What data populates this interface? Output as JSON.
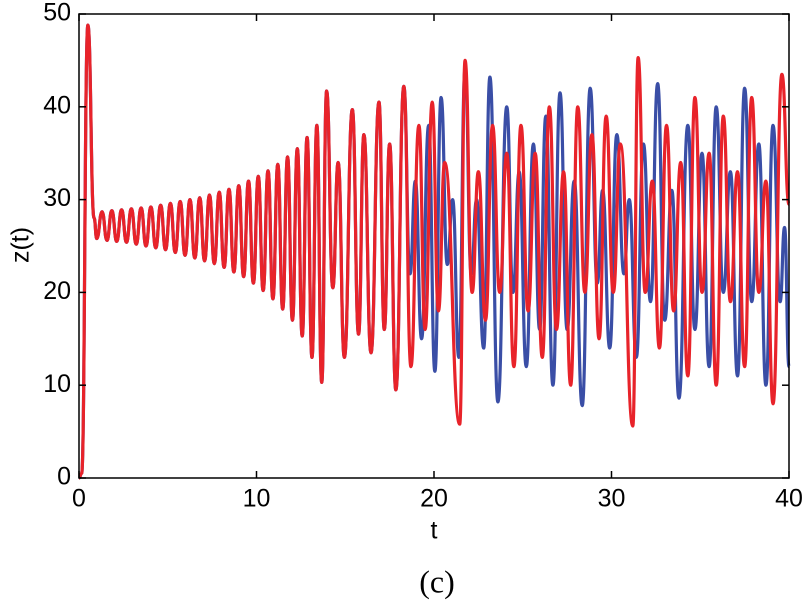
{
  "chart_data": {
    "type": "line",
    "xlabel": "t",
    "ylabel": "z(t)",
    "caption": "(c)",
    "xlim": [
      0,
      40
    ],
    "xticks": [
      0,
      10,
      20,
      30,
      40
    ],
    "ylim": [
      0,
      50
    ],
    "yticks": [
      0,
      10,
      20,
      30,
      40,
      50
    ],
    "grid": false,
    "series": [
      {
        "color": "#3a4ea6",
        "x": [
          0,
          0.15,
          0.5,
          0.85,
          1.0,
          1.3,
          1.575,
          1.85,
          2.125,
          2.4,
          2.675,
          2.95,
          3.225,
          3.5,
          3.775,
          4.05,
          4.325,
          4.6,
          4.875,
          5.15,
          5.425,
          5.7,
          5.975,
          6.25,
          6.525,
          6.8,
          7.075,
          7.35,
          7.625,
          7.9,
          8.175,
          8.45,
          8.725,
          9.0,
          9.275,
          9.55,
          9.825,
          10.1,
          10.375,
          10.65,
          10.925,
          11.2,
          11.475,
          11.75,
          12.025,
          12.3,
          12.575,
          12.85,
          13.125,
          13.4,
          13.675,
          13.95,
          14.3,
          14.6,
          14.95,
          15.4,
          15.75,
          16.05,
          16.45,
          16.9,
          17.2,
          17.5,
          17.85,
          18.3,
          18.65,
          18.95,
          19.3,
          19.7,
          20.05,
          20.4,
          20.75,
          21.05,
          21.4,
          21.75,
          22.1,
          22.4,
          22.8,
          23.15,
          23.6,
          24.1,
          24.45,
          24.8,
          25.2,
          25.6,
          25.95,
          26.3,
          26.7,
          27.1,
          27.5,
          27.9,
          28.35,
          28.8,
          29.2,
          29.5,
          29.9,
          30.3,
          30.7,
          31.0,
          31.4,
          31.8,
          32.2,
          32.6,
          33,
          33.4,
          33.8,
          34.3,
          34.7,
          35.1,
          35.5,
          35.9,
          36.3,
          36.7,
          37.1,
          37.5,
          37.9,
          38.3,
          38.7,
          39.1,
          39.5,
          39.75,
          40
        ],
        "values": [
          0,
          0.5,
          48.8,
          28,
          25.8,
          28.7,
          25.6,
          28.8,
          25.5,
          28.9,
          25.4,
          29,
          25.2,
          29.1,
          25,
          29.2,
          24.8,
          29.4,
          24.6,
          29.6,
          24.3,
          29.8,
          24,
          30,
          23.7,
          30.2,
          23.4,
          30.5,
          23.1,
          30.8,
          22.7,
          31.1,
          22.2,
          31.5,
          21.7,
          32,
          21,
          32.5,
          20.2,
          33.1,
          19.3,
          33.8,
          18.2,
          34.6,
          17,
          35.5,
          15.3,
          36.7,
          13,
          38,
          10.3,
          41.7,
          20.5,
          34,
          13,
          39.7,
          15.5,
          37,
          13.5,
          40.5,
          16,
          36,
          9.5,
          42.2,
          22,
          32,
          15,
          38,
          11.5,
          41,
          23,
          30,
          13,
          44,
          22,
          30,
          14,
          43.2,
          8.2,
          40,
          20,
          33,
          12,
          36,
          16,
          39,
          10,
          41.5,
          16,
          32,
          7.8,
          42,
          21,
          31,
          14,
          37,
          22,
          30,
          13,
          36,
          19,
          42.5,
          17,
          31,
          8.6,
          38,
          16,
          35,
          12,
          40,
          20,
          33,
          11,
          42,
          19,
          36,
          10,
          38,
          19,
          27,
          12
        ]
      },
      {
        "color": "#e8232a",
        "x": [
          0,
          0.15,
          0.5,
          0.85,
          1.0,
          1.3,
          1.575,
          1.85,
          2.125,
          2.4,
          2.675,
          2.95,
          3.225,
          3.5,
          3.775,
          4.05,
          4.325,
          4.6,
          4.875,
          5.15,
          5.425,
          5.7,
          5.975,
          6.25,
          6.525,
          6.8,
          7.075,
          7.35,
          7.625,
          7.9,
          8.175,
          8.45,
          8.725,
          9.0,
          9.275,
          9.55,
          9.825,
          10.1,
          10.375,
          10.65,
          10.925,
          11.2,
          11.475,
          11.75,
          12.025,
          12.3,
          12.575,
          12.85,
          13.125,
          13.4,
          13.675,
          13.95,
          14.3,
          14.6,
          14.95,
          15.4,
          15.75,
          16.05,
          16.45,
          16.9,
          17.2,
          17.5,
          17.85,
          18.3,
          18.7,
          19.15,
          19.5,
          19.9,
          20.25,
          20.6,
          21.45,
          21.75,
          22.15,
          22.5,
          22.9,
          23.3,
          23.7,
          24.1,
          24.5,
          24.9,
          25.3,
          25.7,
          26.1,
          26.5,
          26.9,
          27.3,
          27.7,
          28.1,
          28.5,
          28.9,
          29.3,
          29.7,
          30.1,
          30.5,
          31.2,
          31.5,
          31.9,
          32.3,
          32.7,
          33.1,
          33.5,
          33.9,
          34.3,
          34.7,
          35.1,
          35.5,
          35.9,
          36.3,
          36.7,
          37.1,
          37.5,
          37.9,
          38.3,
          38.7,
          39.1,
          39.6,
          40
        ],
        "values": [
          0,
          0.5,
          48.8,
          28,
          25.8,
          28.7,
          25.6,
          28.8,
          25.5,
          28.9,
          25.4,
          29,
          25.2,
          29.1,
          25,
          29.2,
          24.8,
          29.4,
          24.6,
          29.6,
          24.3,
          29.8,
          24,
          30,
          23.7,
          30.2,
          23.4,
          30.5,
          23.1,
          30.8,
          22.7,
          31.1,
          22.2,
          31.5,
          21.7,
          32,
          21,
          32.5,
          20.2,
          33.1,
          19.3,
          33.8,
          18.2,
          34.6,
          17,
          35.5,
          15.3,
          36.7,
          13,
          38,
          10.3,
          41.7,
          20.5,
          34,
          13,
          39.7,
          15.5,
          37,
          13.5,
          40.5,
          16,
          36,
          9.5,
          42.2,
          12,
          38,
          16,
          40.5,
          18,
          34,
          5.8,
          45,
          20,
          33,
          17,
          38,
          20,
          35,
          12,
          38,
          18,
          35,
          13,
          40,
          16,
          33,
          10,
          40,
          20,
          37,
          15,
          39,
          20,
          36,
          5.6,
          45.3,
          20,
          32,
          14,
          38,
          18,
          34,
          11,
          41,
          20,
          35,
          10,
          39,
          19,
          33,
          12,
          41,
          20,
          32,
          8,
          43.5,
          29.5
        ]
      }
    ]
  }
}
